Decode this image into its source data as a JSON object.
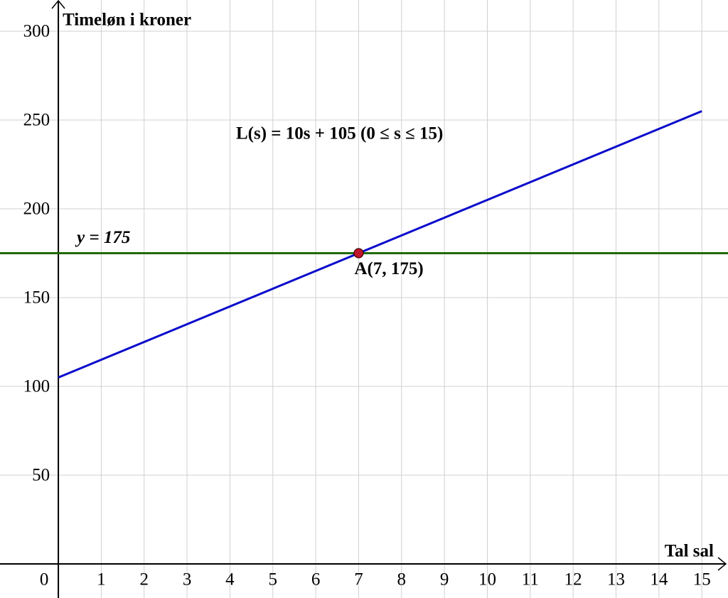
{
  "chart_data": {
    "type": "line",
    "x_label": "Tal sal",
    "y_label": "Timeløn i kroner",
    "xlim": [
      -1.36,
      15.61
    ],
    "ylim": [
      -19.2,
      317.6
    ],
    "xticks": [
      0,
      1,
      2,
      3,
      4,
      5,
      6,
      7,
      8,
      9,
      10,
      11,
      12,
      13,
      14,
      15
    ],
    "yticks": [
      50,
      100,
      150,
      200,
      250,
      300
    ],
    "grid": true,
    "series": [
      {
        "name": "L(s) = 10s + 105 (0 ≤ s ≤ 15)",
        "color": "#0a0acc",
        "x": [
          0,
          15
        ],
        "values": [
          105,
          255
        ]
      }
    ],
    "hlines": [
      {
        "value": 175,
        "label": "y = 175",
        "color": "#1e6b00"
      }
    ],
    "points": [
      {
        "x": 7,
        "y": 175,
        "label": "A(7, 175)",
        "color": "#c0142c"
      }
    ]
  }
}
